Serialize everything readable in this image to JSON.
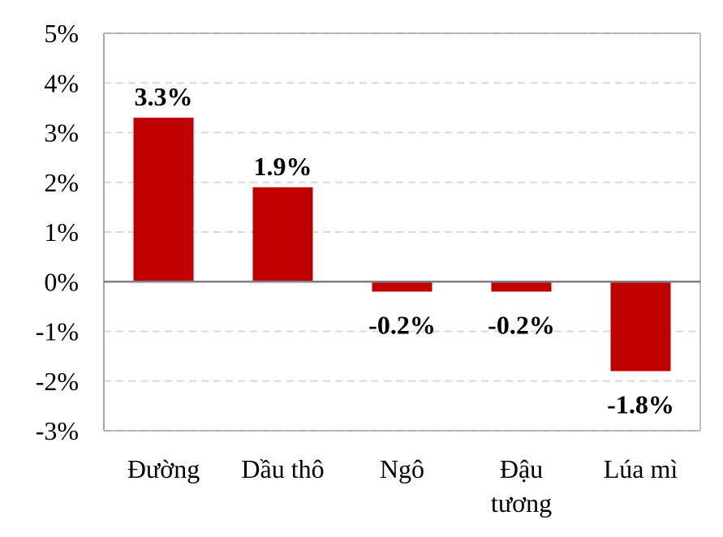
{
  "chart_data": {
    "type": "bar",
    "categories": [
      [
        "Đường"
      ],
      [
        "Dầu thô"
      ],
      [
        "Ngô"
      ],
      [
        "Đậu",
        "tương"
      ],
      [
        "Lúa mì"
      ]
    ],
    "values": [
      3.3,
      1.9,
      -0.2,
      -0.2,
      -1.8
    ],
    "value_labels": [
      "3.3%",
      "1.9%",
      "-0.2%",
      "-0.2%",
      "-1.8%"
    ],
    "yticks": [
      5,
      4,
      3,
      2,
      1,
      0,
      -1,
      -2,
      -3
    ],
    "ytick_labels": [
      "5%",
      "4%",
      "3%",
      "2%",
      "1%",
      "0%",
      "-1%",
      "-2%",
      "-3%"
    ],
    "ylim": [
      -3,
      5
    ],
    "grid": true,
    "title": "",
    "xlabel": "",
    "ylabel": ""
  },
  "colors": {
    "bar": "#c00000",
    "grid": "#d9d9d9",
    "axis": "#a6a6a6",
    "zero_line": "#7f7f7f"
  }
}
